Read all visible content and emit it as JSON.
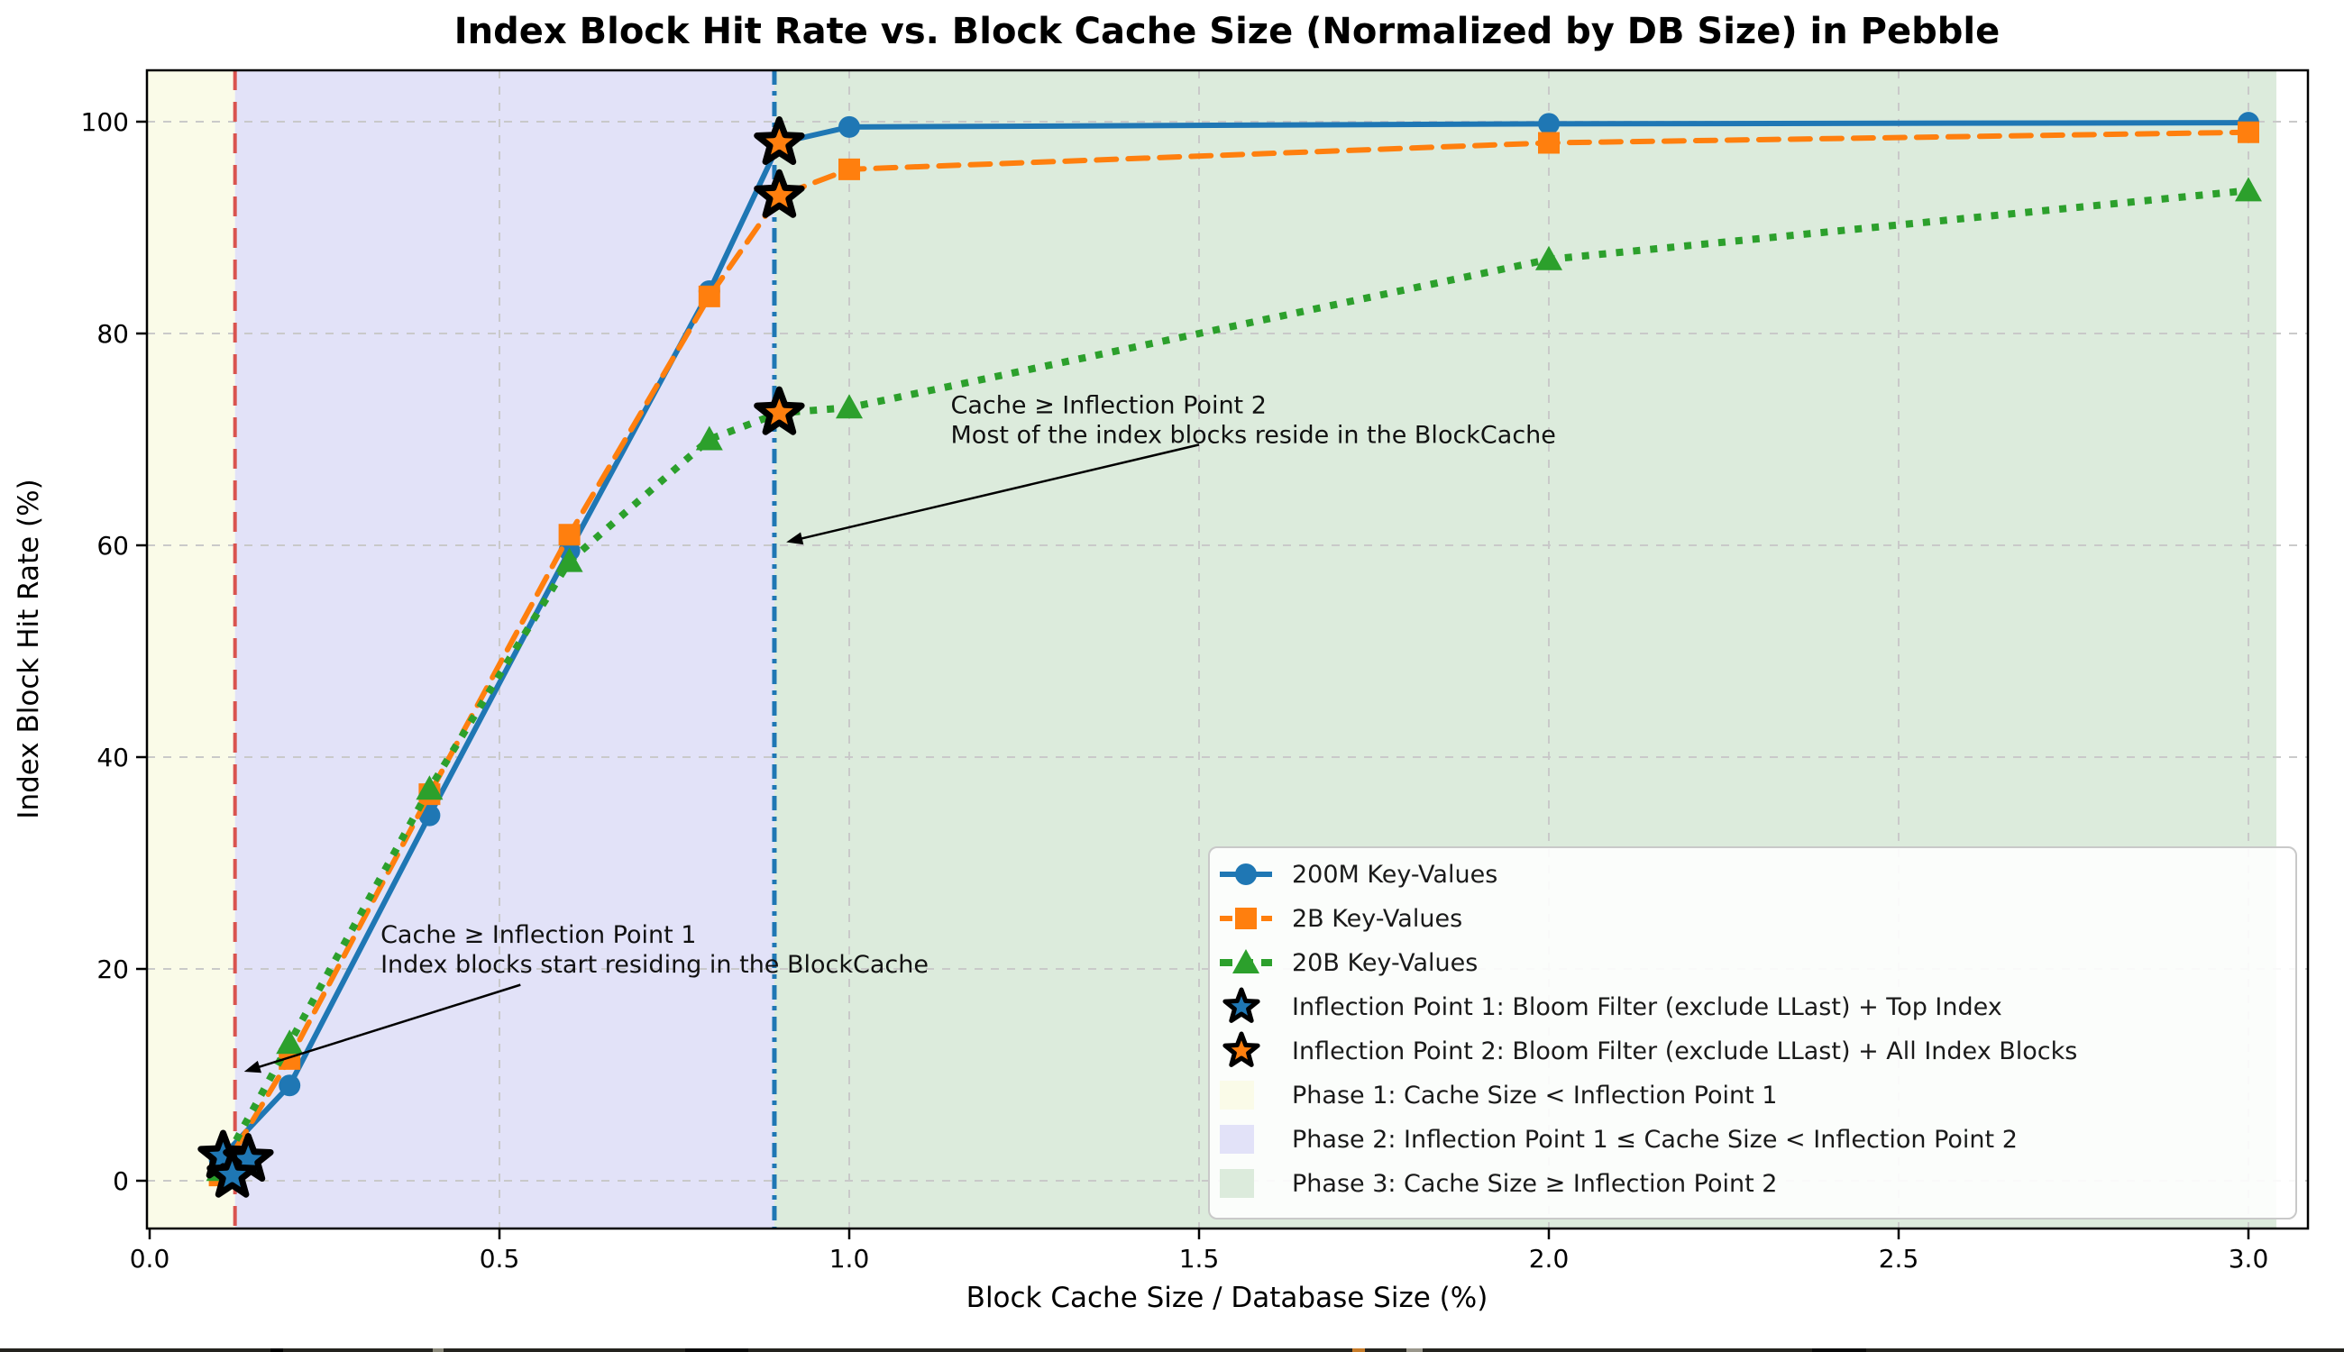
{
  "figure": {
    "title": "Index Block Hit Rate vs. Block Cache Size (Normalized by DB Size) in Pebble",
    "xlabel": "Block Cache Size / Database Size (%)",
    "ylabel": "Index Block Hit Rate (%)"
  },
  "chart_data": {
    "type": "line",
    "title": "Index Block Hit Rate vs. Block Cache Size (Normalized by DB Size) in Pebble",
    "xlabel": "Block Cache Size / Database Size (%)",
    "ylabel": "Index Block Hit Rate (%)",
    "xlim": [
      -0.005,
      3.085
    ],
    "ylim": [
      -4.5,
      104.9
    ],
    "grid": true,
    "legend_position": "lower right",
    "xticks": [
      0.0,
      0.5,
      1.0,
      1.5,
      2.0,
      2.5,
      3.0
    ],
    "xtick_labels": [
      "0.0",
      "0.5",
      "1.0",
      "1.5",
      "2.0",
      "2.5",
      "3.0"
    ],
    "yticks": [
      0,
      20,
      40,
      60,
      80,
      100
    ],
    "ytick_labels": [
      "0",
      "20",
      "40",
      "60",
      "80",
      "100"
    ],
    "x": [
      0.1,
      0.2,
      0.4,
      0.6,
      0.8,
      0.9,
      1.0,
      2.0,
      3.0
    ],
    "series": [
      {
        "name": "200M Key-Values",
        "color": "#1f77b4",
        "line": "solid",
        "marker": "circle",
        "values": [
          2.0,
          9.0,
          34.5,
          59.5,
          84.0,
          98.0,
          99.5,
          99.8,
          99.9
        ]
      },
      {
        "name": "2B Key-Values",
        "color": "#ff7f0e",
        "line": "dashed",
        "marker": "square",
        "values": [
          0.5,
          11.5,
          36.5,
          61.0,
          83.5,
          93.0,
          95.5,
          98.0,
          99.0
        ]
      },
      {
        "name": "20B Key-Values",
        "color": "#2ca02c",
        "line": "dotted",
        "marker": "triangle",
        "values": [
          1.0,
          13.0,
          37.0,
          58.5,
          70.0,
          72.5,
          73.0,
          87.0,
          93.5
        ]
      }
    ],
    "inflection_points": [
      {
        "name": "Inflection Point 1: Bloom Filter (exclude LLast) + Top Index",
        "color": "#1f77b4",
        "points": [
          [
            0.105,
            2.3
          ],
          [
            0.141,
            2.0
          ],
          [
            0.118,
            0.5
          ]
        ]
      },
      {
        "name": "Inflection Point 2: Bloom Filter (exclude LLast) + All Index Blocks",
        "color": "#ff7f0e",
        "points": [
          [
            0.9,
            98.0
          ],
          [
            0.9,
            93.0
          ],
          [
            0.9,
            72.5
          ]
        ]
      }
    ],
    "phases": [
      {
        "name": "Phase 1: Cache Size < Inflection Point 1",
        "color": "#fafbe8",
        "from": "xmin",
        "to": 0.122
      },
      {
        "name": "Phase 2: Inflection Point 1 ≤ Cache Size < Inflection Point 2",
        "color": "#e2e2f8",
        "from": 0.122,
        "to": 0.893
      },
      {
        "name": "Phase 3: Cache Size ≥ Inflection Point 2",
        "color": "#dcebdc",
        "from": 0.893,
        "to": 3.04
      }
    ],
    "vlines": [
      {
        "x": 0.122,
        "color": "#d9534f",
        "style": "dashed",
        "width": 4
      },
      {
        "x": 0.893,
        "color": "#1f77b4",
        "style": "dashdot",
        "width": 5
      }
    ],
    "annotations": [
      {
        "lines": [
          "Cache ≥ Inflection Point 1",
          "Index blocks start residing in the BlockCache"
        ],
        "text_xy": [
          0.33,
          24.5
        ],
        "arrow_from": [
          0.53,
          18.5
        ],
        "arrow_to": [
          0.135,
          10.3
        ]
      },
      {
        "lines": [
          "Cache ≥ Inflection Point 2",
          "Most of the index blocks reside in the BlockCache"
        ],
        "text_xy": [
          1.145,
          74.5
        ],
        "arrow_from": [
          1.5,
          69.5
        ],
        "arrow_to": [
          0.91,
          60.3
        ]
      }
    ],
    "grid_color": "#c8c8c8",
    "legend_bg": "rgba(255,255,255,0.88)",
    "legend_border": "#c9c9c9"
  },
  "bottom_strip": {
    "y": 1496,
    "height": 4,
    "base_color": "#24231e",
    "specks": [
      {
        "x": 300,
        "w": 14,
        "c": "#000000"
      },
      {
        "x": 480,
        "w": 12,
        "c": "#8a887a"
      },
      {
        "x": 760,
        "w": 70,
        "c": "#0a0a0a"
      },
      {
        "x": 1500,
        "w": 14,
        "c": "#c77c2a"
      },
      {
        "x": 1560,
        "w": 18,
        "c": "#9a978c"
      },
      {
        "x": 2010,
        "w": 60,
        "c": "#0a0a0a"
      }
    ]
  }
}
